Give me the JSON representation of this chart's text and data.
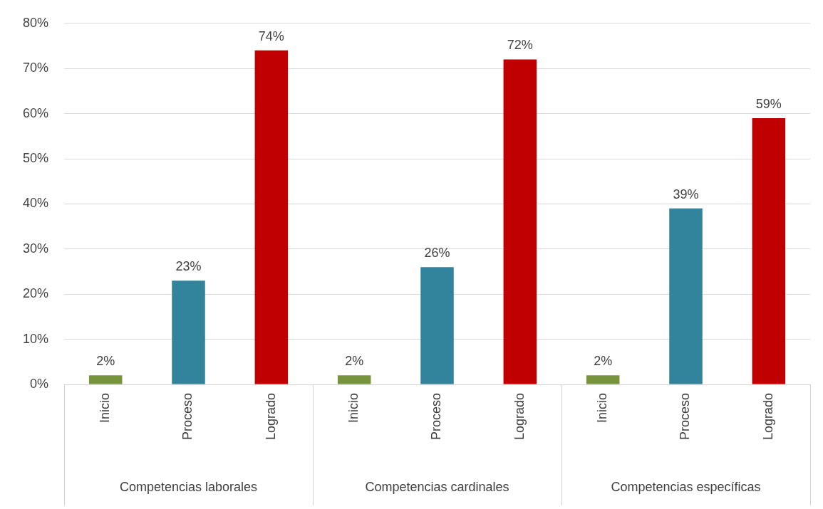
{
  "chart_data": {
    "type": "bar",
    "categories": [
      "Inicio",
      "Proceso",
      "Logrado",
      "Inicio",
      "Proceso",
      "Logrado",
      "Inicio",
      "Proceso",
      "Logrado"
    ],
    "values": [
      2,
      23,
      74,
      2,
      26,
      72,
      2,
      39,
      59
    ],
    "value_labels": [
      "2%",
      "23%",
      "74%",
      "2%",
      "26%",
      "72%",
      "2%",
      "39%",
      "59%"
    ],
    "colors": [
      "#77933c",
      "#31849b",
      "#c00000",
      "#77933c",
      "#31849b",
      "#c00000",
      "#77933c",
      "#31849b",
      "#c00000"
    ],
    "ylim": [
      0,
      80
    ],
    "yticks": [
      {
        "value": 0,
        "label": "0%"
      },
      {
        "value": 10,
        "label": "10%"
      },
      {
        "value": 20,
        "label": "20%"
      },
      {
        "value": 30,
        "label": "30%"
      },
      {
        "value": 40,
        "label": "40%"
      },
      {
        "value": 50,
        "label": "50%"
      },
      {
        "value": 60,
        "label": "60%"
      },
      {
        "value": 70,
        "label": "70%"
      },
      {
        "value": 80,
        "label": "80%"
      }
    ],
    "grid": "y",
    "annotations": [
      "Competencias laborales",
      "Competencias cardinales",
      "Competencias específicas"
    ]
  }
}
